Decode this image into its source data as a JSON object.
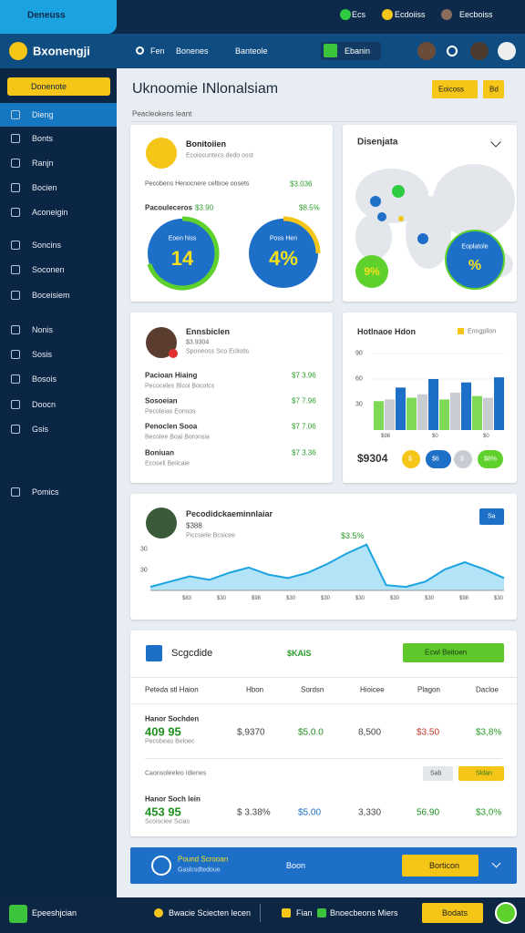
{
  "top_bar": {
    "brand": "Deneuss",
    "links": [
      "Ecs",
      "Ecdoiiss",
      "Eecboiss"
    ]
  },
  "nav_bar": {
    "app_name": "Bxonengji",
    "links": [
      "Fen",
      "Bonenes",
      "Banteole"
    ],
    "button": "Ebanin"
  },
  "sidebar": {
    "search": "Donenote",
    "items": [
      "Dieng",
      "Bonts",
      "Ranjn",
      "Bocien",
      "Aconeigin",
      "Soncins",
      "Soconen",
      "Boceisiem",
      "Nonis",
      "Sosis",
      "Bosois",
      "Doocn",
      "Gsis",
      "Pomics"
    ]
  },
  "header": {
    "title": "Uknoomie INlonalsiam",
    "subtitle": "Peacleokens leant",
    "buttons": [
      "Eoicoss",
      "Bd"
    ]
  },
  "summary_card": {
    "title": "Bonitoiien",
    "subtitle": "Ecoiocuntecs dedo osst",
    "row_label": "Pecobens Henocnere celtiroe oosets",
    "row_value": "$3.036",
    "metric_label": "Pacouleceros",
    "metric_value": "$3.90",
    "metric_change": "$8.5%",
    "gauges": [
      {
        "label": "Eoen hiss",
        "value": "14"
      },
      {
        "label": "Poss Hen",
        "value": "4%"
      }
    ]
  },
  "map_card": {
    "title": "Disenjata",
    "badges": [
      "9%",
      "%"
    ],
    "badge_label": "Eoplatole"
  },
  "list_card": {
    "title": "Ennsbiclen",
    "meta": "$3.9304",
    "sub": "Sponeoss Sco Ecliotis",
    "items": [
      {
        "name": "Pacioan Hiaing",
        "sub": "Pecoceles Blcoi Bocotcs",
        "value": "$7 3.96"
      },
      {
        "name": "Sosoeian",
        "sub": "Pecoleias Eonsos",
        "value": "$7 7.96"
      },
      {
        "name": "Penoclen Sooa",
        "sub": "Becolee Boai Boronsia",
        "value": "$7 7.06"
      },
      {
        "name": "Boniuan",
        "sub": "Ecoseli Beiicaie",
        "value": "$7 3.36"
      }
    ]
  },
  "bar_card": {
    "title": "Hotlnaoe Hdon",
    "legend": "Enngplion",
    "ylim": [
      0,
      90
    ],
    "yticks": [
      30,
      60,
      90
    ],
    "series": [
      {
        "color": "#7ed957",
        "values": [
          34,
          38,
          36,
          40
        ]
      },
      {
        "color": "#c9ccd3",
        "values": [
          36,
          42,
          44,
          38
        ]
      },
      {
        "color": "#1e6fc8",
        "values": [
          50,
          60,
          56,
          62
        ]
      }
    ],
    "axis_labels": [
      "$98",
      "$0",
      "$0"
    ],
    "total": "$9304",
    "chips": [
      "$",
      "$6",
      "$",
      "$8%"
    ]
  },
  "trend_card": {
    "title": "Pecodidckaeminnlaiar",
    "value": "$388",
    "sub": "Piccsiele Bcsicee",
    "peak_label": "$3.5%",
    "button": "Sa",
    "y_labels": [
      "30",
      "30"
    ],
    "ylim": [
      0,
      60
    ],
    "values": [
      4,
      10,
      16,
      12,
      20,
      26,
      18,
      14,
      20,
      30,
      42,
      52,
      6,
      4,
      10,
      24,
      32,
      24,
      14
    ],
    "x_labels": [
      "$83",
      "$30",
      "$98",
      "$30",
      "$30",
      "$30",
      "$30",
      "$30",
      "$98",
      "$30"
    ]
  },
  "table_card": {
    "title": "Scgcdide",
    "tag": "$KAIS",
    "button": "Ecwl Beitoen",
    "columns": [
      "Peteda stl Haion",
      "Hbon",
      "Sordsn",
      "Hioicee",
      "Plagon",
      "Dacloe"
    ],
    "rows": [
      {
        "name": "Hanor Sochden",
        "amount": "409 95",
        "sub": "Pecobeas Beloec",
        "cells": [
          "$,9370",
          "$5.0.0",
          "8,500",
          "$3.50",
          "$3,8%"
        ]
      },
      {
        "name": "Hanor Soch lein",
        "amount": "453 95",
        "sub": "Scoisciee Scias",
        "cells": [
          "$ 3.38%",
          "$5.00",
          "3,330",
          "56.90",
          "$3,0%"
        ]
      }
    ],
    "mid_row": {
      "text": "Caonsoleeleo Idienes",
      "chips": [
        "Sab",
        "Sldan"
      ]
    }
  },
  "banner": {
    "title": "Pound Scrooan",
    "sub": "Gaslcsdtedoue",
    "link": "Boon",
    "button": "Borticon"
  },
  "footer": {
    "brand": "Epeeshjcian",
    "links": [
      "Bwacie Sciecten lecen",
      "Fian",
      "Bnoecbeons Miers"
    ],
    "button": "Bodats"
  }
}
